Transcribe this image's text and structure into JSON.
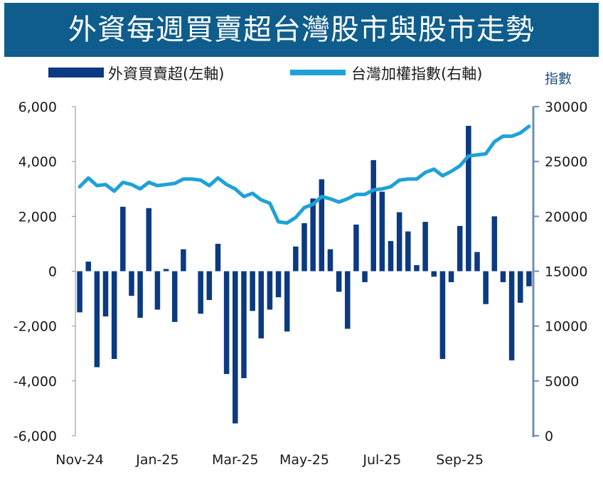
{
  "title": "外資每週買賣超台灣股市與股市走勢",
  "chart_data": {
    "type": "bar+line",
    "title": "外資每週買賣超台灣股市與股市走勢",
    "right_axis_label": "指數",
    "legend": {
      "placement": "top"
    },
    "x_tick_labels": [
      "Nov-24",
      "Jan-25",
      "Mar-25",
      "May-25",
      "Jul-25",
      "Sep-25"
    ],
    "x_tick_weeks": [
      0,
      9,
      18,
      26,
      35,
      44
    ],
    "left_axis": {
      "ylim": [
        -6000,
        6000
      ],
      "ticks": [
        6000,
        4000,
        2000,
        0,
        -2000,
        -4000,
        -6000
      ],
      "tick_labels": [
        "6,000",
        "4,000",
        "2,000",
        "0",
        "-2,000",
        "-4,000",
        "-6,000"
      ]
    },
    "right_axis": {
      "ylim": [
        0,
        30000
      ],
      "ticks": [
        30000,
        25000,
        20000,
        15000,
        10000,
        5000,
        0
      ],
      "tick_labels": [
        "30000",
        "25000",
        "20000",
        "15000",
        "10000",
        "5000",
        "0"
      ]
    },
    "series": [
      {
        "name": "外資買賣超(左軸)",
        "type": "bar",
        "axis": "left",
        "color": "#0b3a82",
        "values": [
          -1500,
          350,
          -3500,
          -1650,
          -3200,
          2350,
          -900,
          -1700,
          2300,
          -1400,
          80,
          -1850,
          800,
          0,
          -1550,
          -1050,
          1000,
          -3750,
          -5550,
          -3900,
          -1450,
          -2450,
          -1400,
          -950,
          -2200,
          900,
          1750,
          2650,
          3350,
          800,
          -750,
          -2100,
          1700,
          -400,
          4050,
          2900,
          1100,
          2150,
          1450,
          220,
          1800,
          -200,
          -3200,
          -400,
          1650,
          5300,
          700,
          -1200,
          2000,
          -400,
          -3250,
          -1150,
          -550
        ]
      },
      {
        "name": "台灣加權指數(右軸)",
        "type": "line",
        "axis": "right",
        "color": "#1fa1d7",
        "values": [
          22700,
          23500,
          22800,
          22900,
          22300,
          23100,
          22900,
          22500,
          23100,
          22800,
          22900,
          23000,
          23400,
          23400,
          23300,
          22800,
          23500,
          22900,
          22500,
          21800,
          22100,
          21500,
          21200,
          19500,
          19400,
          19900,
          20800,
          21100,
          21800,
          21600,
          21300,
          21600,
          22000,
          22000,
          22400,
          22500,
          22700,
          23300,
          23400,
          23400,
          24000,
          24300,
          23700,
          24100,
          24600,
          25500,
          25600,
          25700,
          26800,
          27300,
          27300,
          27600,
          28200
        ]
      }
    ]
  }
}
